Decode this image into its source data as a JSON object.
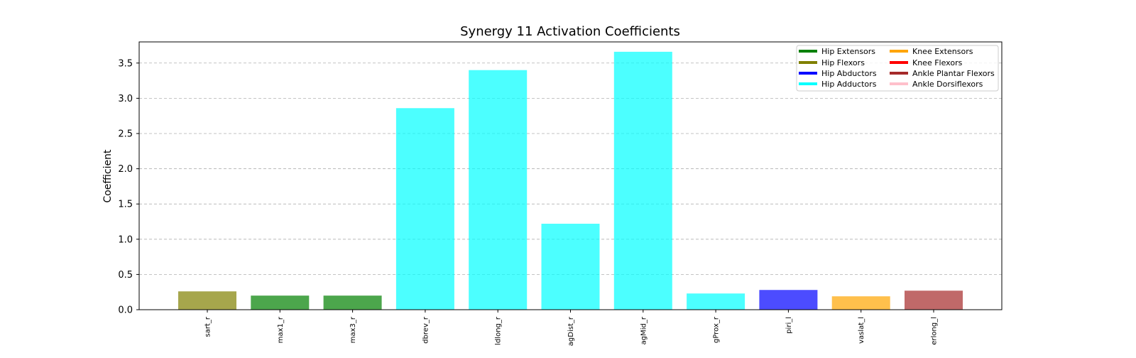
{
  "chart_data": {
    "type": "bar",
    "title": "Synergy 11 Activation Coefficients",
    "xlabel": "",
    "ylabel": "Coefficient",
    "ylim": [
      0,
      3.8
    ],
    "yticks": [
      0.0,
      0.5,
      1.0,
      1.5,
      2.0,
      2.5,
      3.0,
      3.5
    ],
    "ytick_labels": [
      "0.0",
      "0.5",
      "1.0",
      "1.5",
      "2.0",
      "2.5",
      "3.0",
      "3.5"
    ],
    "grid": "y dashed",
    "legend_position": "top-right",
    "categories": [
      "sart_r",
      "max1_r",
      "max3_r",
      "dbrev_r",
      "ldlong_r",
      "agDist_r",
      "agMid_r",
      "gProx_r",
      "piri_l",
      "vaslat_l",
      "erlong_l"
    ],
    "values": [
      0.26,
      0.2,
      0.2,
      2.86,
      3.4,
      1.22,
      3.66,
      0.23,
      0.28,
      0.19,
      0.27
    ],
    "bar_groups": [
      "Hip Flexors",
      "Hip Extensors",
      "Hip Extensors",
      "Hip Adductors",
      "Hip Adductors",
      "Hip Adductors",
      "Hip Adductors",
      "Hip Adductors",
      "Hip Abductors",
      "Knee Extensors",
      "Ankle Plantar Flexors"
    ],
    "legend": [
      {
        "label": "Hip Extensors",
        "color": "#008000"
      },
      {
        "label": "Hip Flexors",
        "color": "#808000"
      },
      {
        "label": "Hip Abductors",
        "color": "#0000ff"
      },
      {
        "label": "Hip Adductors",
        "color": "#00ffff"
      },
      {
        "label": "Knee Extensors",
        "color": "#ffa500"
      },
      {
        "label": "Knee Flexors",
        "color": "#ff0000"
      },
      {
        "label": "Ankle Plantar Flexors",
        "color": "#a52a2a"
      },
      {
        "label": "Ankle Dorsiflexors",
        "color": "#ffc0cb"
      }
    ],
    "bar_opacity": 0.7
  }
}
